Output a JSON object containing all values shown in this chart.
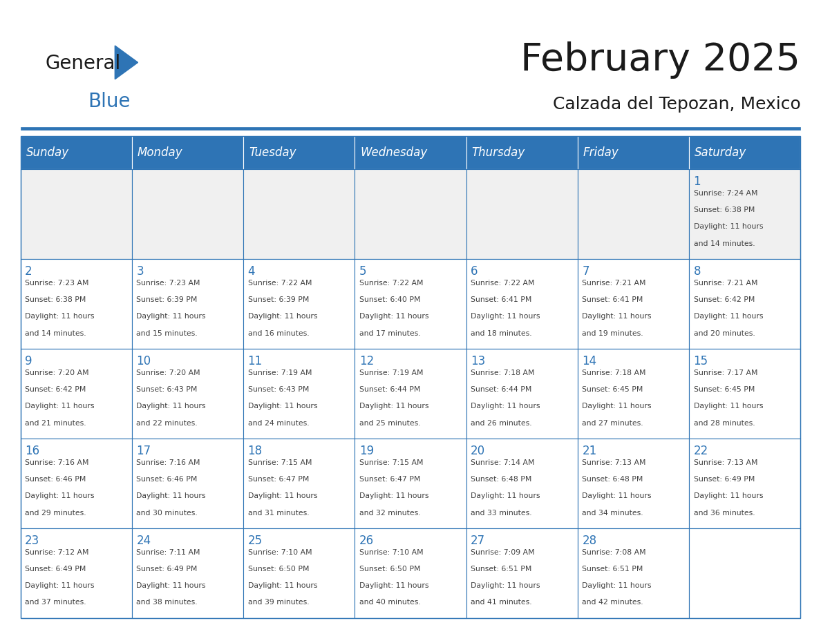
{
  "title": "February 2025",
  "subtitle": "Calzada del Tepozan, Mexico",
  "days_of_week": [
    "Sunday",
    "Monday",
    "Tuesday",
    "Wednesday",
    "Thursday",
    "Friday",
    "Saturday"
  ],
  "header_bg": "#2E74B5",
  "header_text": "#FFFFFF",
  "cell_bg_white": "#FFFFFF",
  "cell_bg_gray": "#F0F0F0",
  "grid_line_color": "#2E74B5",
  "day_number_color": "#2E74B5",
  "info_text_color": "#404040",
  "title_color": "#1a1a1a",
  "subtitle_color": "#1a1a1a",
  "logo_general_color": "#1a1a1a",
  "logo_blue_color": "#2E74B5",
  "weeks": [
    [
      {
        "day": null,
        "sunrise": null,
        "sunset": null,
        "daylight": null
      },
      {
        "day": null,
        "sunrise": null,
        "sunset": null,
        "daylight": null
      },
      {
        "day": null,
        "sunrise": null,
        "sunset": null,
        "daylight": null
      },
      {
        "day": null,
        "sunrise": null,
        "sunset": null,
        "daylight": null
      },
      {
        "day": null,
        "sunrise": null,
        "sunset": null,
        "daylight": null
      },
      {
        "day": null,
        "sunrise": null,
        "sunset": null,
        "daylight": null
      },
      {
        "day": 1,
        "sunrise": "7:24 AM",
        "sunset": "6:38 PM",
        "daylight": "11 hours and 14 minutes."
      }
    ],
    [
      {
        "day": 2,
        "sunrise": "7:23 AM",
        "sunset": "6:38 PM",
        "daylight": "11 hours and 14 minutes."
      },
      {
        "day": 3,
        "sunrise": "7:23 AM",
        "sunset": "6:39 PM",
        "daylight": "11 hours and 15 minutes."
      },
      {
        "day": 4,
        "sunrise": "7:22 AM",
        "sunset": "6:39 PM",
        "daylight": "11 hours and 16 minutes."
      },
      {
        "day": 5,
        "sunrise": "7:22 AM",
        "sunset": "6:40 PM",
        "daylight": "11 hours and 17 minutes."
      },
      {
        "day": 6,
        "sunrise": "7:22 AM",
        "sunset": "6:41 PM",
        "daylight": "11 hours and 18 minutes."
      },
      {
        "day": 7,
        "sunrise": "7:21 AM",
        "sunset": "6:41 PM",
        "daylight": "11 hours and 19 minutes."
      },
      {
        "day": 8,
        "sunrise": "7:21 AM",
        "sunset": "6:42 PM",
        "daylight": "11 hours and 20 minutes."
      }
    ],
    [
      {
        "day": 9,
        "sunrise": "7:20 AM",
        "sunset": "6:42 PM",
        "daylight": "11 hours and 21 minutes."
      },
      {
        "day": 10,
        "sunrise": "7:20 AM",
        "sunset": "6:43 PM",
        "daylight": "11 hours and 22 minutes."
      },
      {
        "day": 11,
        "sunrise": "7:19 AM",
        "sunset": "6:43 PM",
        "daylight": "11 hours and 24 minutes."
      },
      {
        "day": 12,
        "sunrise": "7:19 AM",
        "sunset": "6:44 PM",
        "daylight": "11 hours and 25 minutes."
      },
      {
        "day": 13,
        "sunrise": "7:18 AM",
        "sunset": "6:44 PM",
        "daylight": "11 hours and 26 minutes."
      },
      {
        "day": 14,
        "sunrise": "7:18 AM",
        "sunset": "6:45 PM",
        "daylight": "11 hours and 27 minutes."
      },
      {
        "day": 15,
        "sunrise": "7:17 AM",
        "sunset": "6:45 PM",
        "daylight": "11 hours and 28 minutes."
      }
    ],
    [
      {
        "day": 16,
        "sunrise": "7:16 AM",
        "sunset": "6:46 PM",
        "daylight": "11 hours and 29 minutes."
      },
      {
        "day": 17,
        "sunrise": "7:16 AM",
        "sunset": "6:46 PM",
        "daylight": "11 hours and 30 minutes."
      },
      {
        "day": 18,
        "sunrise": "7:15 AM",
        "sunset": "6:47 PM",
        "daylight": "11 hours and 31 minutes."
      },
      {
        "day": 19,
        "sunrise": "7:15 AM",
        "sunset": "6:47 PM",
        "daylight": "11 hours and 32 minutes."
      },
      {
        "day": 20,
        "sunrise": "7:14 AM",
        "sunset": "6:48 PM",
        "daylight": "11 hours and 33 minutes."
      },
      {
        "day": 21,
        "sunrise": "7:13 AM",
        "sunset": "6:48 PM",
        "daylight": "11 hours and 34 minutes."
      },
      {
        "day": 22,
        "sunrise": "7:13 AM",
        "sunset": "6:49 PM",
        "daylight": "11 hours and 36 minutes."
      }
    ],
    [
      {
        "day": 23,
        "sunrise": "7:12 AM",
        "sunset": "6:49 PM",
        "daylight": "11 hours and 37 minutes."
      },
      {
        "day": 24,
        "sunrise": "7:11 AM",
        "sunset": "6:49 PM",
        "daylight": "11 hours and 38 minutes."
      },
      {
        "day": 25,
        "sunrise": "7:10 AM",
        "sunset": "6:50 PM",
        "daylight": "11 hours and 39 minutes."
      },
      {
        "day": 26,
        "sunrise": "7:10 AM",
        "sunset": "6:50 PM",
        "daylight": "11 hours and 40 minutes."
      },
      {
        "day": 27,
        "sunrise": "7:09 AM",
        "sunset": "6:51 PM",
        "daylight": "11 hours and 41 minutes."
      },
      {
        "day": 28,
        "sunrise": "7:08 AM",
        "sunset": "6:51 PM",
        "daylight": "11 hours and 42 minutes."
      },
      {
        "day": null,
        "sunrise": null,
        "sunset": null,
        "daylight": null
      }
    ]
  ]
}
